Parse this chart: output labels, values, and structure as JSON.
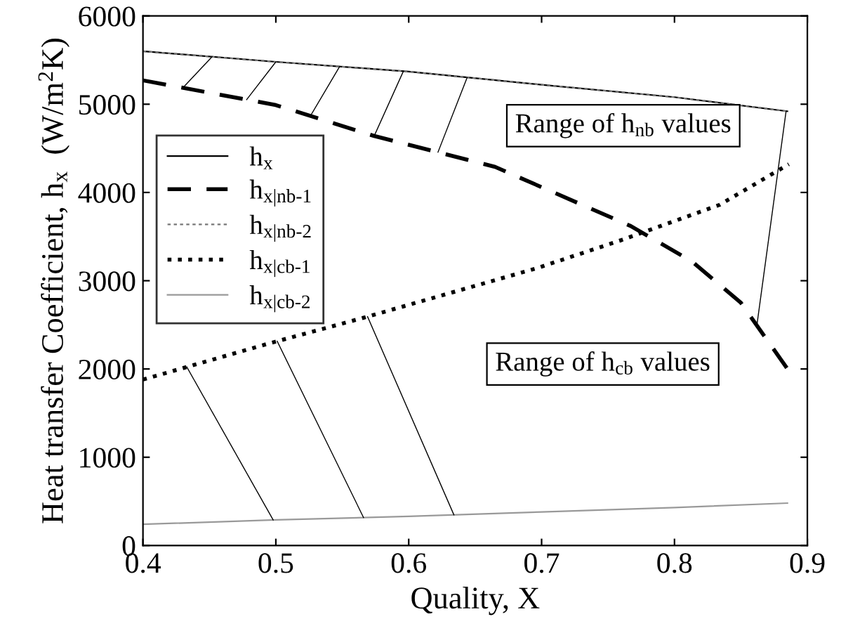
{
  "chart_data": {
    "type": "line",
    "xlabel": "Quality, X",
    "ylabel": "Heat transfer Coefficient, h$_{x}$  (W/m$^{2}$K)",
    "xlim": [
      0.4,
      0.9
    ],
    "xticks": [
      0.4,
      0.5,
      0.6,
      0.7,
      0.8,
      0.9
    ],
    "ylim": [
      0,
      6000
    ],
    "yticks": [
      0,
      1000,
      2000,
      3000,
      4000,
      5000,
      6000
    ],
    "grid": false,
    "legend": "top left",
    "marker": "none",
    "annotations": [
      "Range of h$_{nb}$ values",
      "Range of h$_{cb}$ values"
    ],
    "series": [
      {
        "name": "h$_{x}$",
        "color": "#000000",
        "line_style": "solid",
        "x": [
          0.4,
          0.5,
          0.6,
          0.7,
          0.8,
          0.885
        ],
        "values": [
          5600,
          5480,
          5370,
          5220,
          5080,
          4920
        ]
      },
      {
        "name": "h$_{x|nb-1}$",
        "color": "#000000",
        "line_style": "dashed",
        "x": [
          0.4,
          0.5,
          0.574,
          0.665,
          0.767,
          0.813,
          0.85,
          0.886
        ],
        "values": [
          5270,
          4990,
          4640,
          4290,
          3620,
          3220,
          2750,
          1980
        ]
      },
      {
        "name": "h$_{x|nb-2}$",
        "color": "#777777",
        "line_style": "dotted",
        "x": [
          0.4,
          0.5,
          0.6,
          0.7,
          0.8,
          0.885
        ],
        "values": [
          5600,
          5480,
          5370,
          5220,
          5080,
          4920
        ]
      },
      {
        "name": "h$_{x|cb-1}$",
        "color": "#000000",
        "line_style": "dotted",
        "x": [
          0.4,
          0.495,
          0.566,
          0.696,
          0.76,
          0.834,
          0.886
        ],
        "values": [
          1880,
          2290,
          2580,
          3140,
          3460,
          3860,
          4320
        ]
      },
      {
        "name": "h$_{x|cb-2}$",
        "color": "#999999",
        "line_style": "solid",
        "x": [
          0.4,
          0.5,
          0.6,
          0.7,
          0.8,
          0.885
        ],
        "values": [
          240,
          290,
          330,
          380,
          430,
          480
        ]
      }
    ]
  }
}
